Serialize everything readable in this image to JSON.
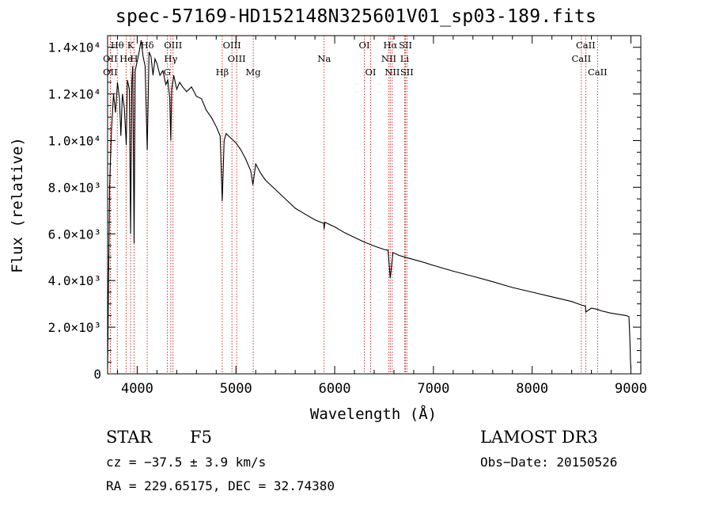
{
  "title": "spec-57169-HD152148N325601V01_sp03-189.fits",
  "info": {
    "object_class": "STAR",
    "subclass": "F5",
    "survey": "LAMOST DR3",
    "cz": "cz = −37.5 ± 3.9 km/s",
    "obs_date": "Obs−Date: 20150526",
    "coords": "RA = 229.65175, DEC =  32.74380"
  },
  "colors": {
    "spectrum": "#000000",
    "lines": "#cc0000",
    "axes": "#000000"
  },
  "chart_data": {
    "type": "line",
    "title": "spec-57169-HD152148N325601V01_sp03-189.fits",
    "xlabel": "Wavelength (Å)",
    "ylabel": "Flux (relative)",
    "xlim": [
      3700,
      9100
    ],
    "ylim": [
      0,
      14500
    ],
    "xticks": [
      4000,
      5000,
      6000,
      7000,
      8000,
      9000
    ],
    "xtick_labels": [
      "4000",
      "5000",
      "6000",
      "7000",
      "8000",
      "9000"
    ],
    "yticks": [
      0,
      2000,
      4000,
      6000,
      8000,
      10000,
      12000,
      14000
    ],
    "ytick_labels": [
      "0",
      "2.0×10³",
      "4.0×10³",
      "6.0×10³",
      "8.0×10³",
      "1.0×10⁴",
      "1.2×10⁴",
      "1.4×10⁴"
    ],
    "series": [
      {
        "name": "spectrum",
        "x": [
          3700,
          3720,
          3740,
          3760,
          3780,
          3800,
          3820,
          3835,
          3850,
          3870,
          3889,
          3900,
          3920,
          3933,
          3945,
          3955,
          3968,
          3980,
          4000,
          4020,
          4040,
          4060,
          4080,
          4101,
          4120,
          4140,
          4160,
          4180,
          4200,
          4230,
          4260,
          4290,
          4310,
          4330,
          4340,
          4350,
          4370,
          4400,
          4430,
          4460,
          4500,
          4550,
          4600,
          4650,
          4700,
          4750,
          4800,
          4840,
          4861,
          4880,
          4900,
          4950,
          5000,
          5050,
          5100,
          5150,
          5172,
          5200,
          5250,
          5300,
          5400,
          5500,
          5600,
          5700,
          5800,
          5890,
          5893,
          5900,
          6000,
          6100,
          6200,
          6300,
          6400,
          6500,
          6540,
          6563,
          6590,
          6650,
          6700,
          6800,
          6900,
          7000,
          7200,
          7400,
          7600,
          7800,
          8000,
          8200,
          8400,
          8498,
          8540,
          8542,
          8600,
          8662,
          8700,
          8800,
          8950,
          8980,
          8990,
          8995,
          9000
        ],
        "y": [
          200,
          8000,
          10500,
          12000,
          11200,
          12500,
          11800,
          10200,
          12000,
          11400,
          9800,
          12600,
          12200,
          6000,
          12500,
          13200,
          5600,
          13000,
          13400,
          13800,
          14300,
          13600,
          13200,
          9600,
          13800,
          13600,
          12800,
          13500,
          13300,
          12800,
          13000,
          12400,
          12600,
          11800,
          10000,
          12200,
          12800,
          12200,
          12500,
          12300,
          12100,
          12300,
          11900,
          11800,
          11300,
          11000,
          10600,
          10200,
          7400,
          10000,
          10300,
          10100,
          9900,
          9600,
          9200,
          8700,
          8100,
          9000,
          8600,
          8300,
          7900,
          7500,
          7100,
          6850,
          6600,
          6450,
          6200,
          6500,
          6300,
          6050,
          5850,
          5650,
          5480,
          5330,
          5300,
          4100,
          5200,
          5080,
          5020,
          4900,
          4780,
          4650,
          4400,
          4180,
          3950,
          3700,
          3500,
          3300,
          3100,
          2950,
          2900,
          2650,
          2820,
          2760,
          2700,
          2600,
          2500,
          2450,
          1400,
          600,
          200
        ]
      }
    ],
    "lines": [
      {
        "label": "Hθ",
        "x": 3798,
        "row": 1
      },
      {
        "label": "OII",
        "x": 3727,
        "row": 2
      },
      {
        "label": "OII",
        "x": 3727,
        "row": 3
      },
      {
        "label": "He",
        "x": 3889,
        "row": 2
      },
      {
        "label": "K",
        "x": 3933,
        "row": 1
      },
      {
        "label": "H",
        "x": 3968,
        "row": 2
      },
      {
        "label": "Hδ",
        "x": 4101,
        "row": 1
      },
      {
        "label": "OIII",
        "x": 4363,
        "row": 1
      },
      {
        "label": "Hγ",
        "x": 4340,
        "row": 2
      },
      {
        "label": "G",
        "x": 4304,
        "row": 3
      },
      {
        "label": "OIII",
        "x": 4959,
        "row": 1
      },
      {
        "label": "OIII",
        "x": 5007,
        "row": 2
      },
      {
        "label": "Hβ",
        "x": 4861,
        "row": 3
      },
      {
        "label": "Mg",
        "x": 5175,
        "row": 3
      },
      {
        "label": "Na",
        "x": 5893,
        "row": 2
      },
      {
        "label": "OI",
        "x": 6300,
        "row": 1
      },
      {
        "label": "OI",
        "x": 6364,
        "row": 3
      },
      {
        "label": "Hα",
        "x": 6563,
        "row": 1
      },
      {
        "label": "NII",
        "x": 6548,
        "row": 2
      },
      {
        "label": "NII",
        "x": 6583,
        "row": 3
      },
      {
        "label": "SII",
        "x": 6717,
        "row": 1
      },
      {
        "label": "Li",
        "x": 6708,
        "row": 2
      },
      {
        "label": "SII",
        "x": 6731,
        "row": 3
      },
      {
        "label": "CaII",
        "x": 8498,
        "row": 2
      },
      {
        "label": "CaII",
        "x": 8542,
        "row": 1
      },
      {
        "label": "CaII",
        "x": 8662,
        "row": 3
      }
    ]
  }
}
